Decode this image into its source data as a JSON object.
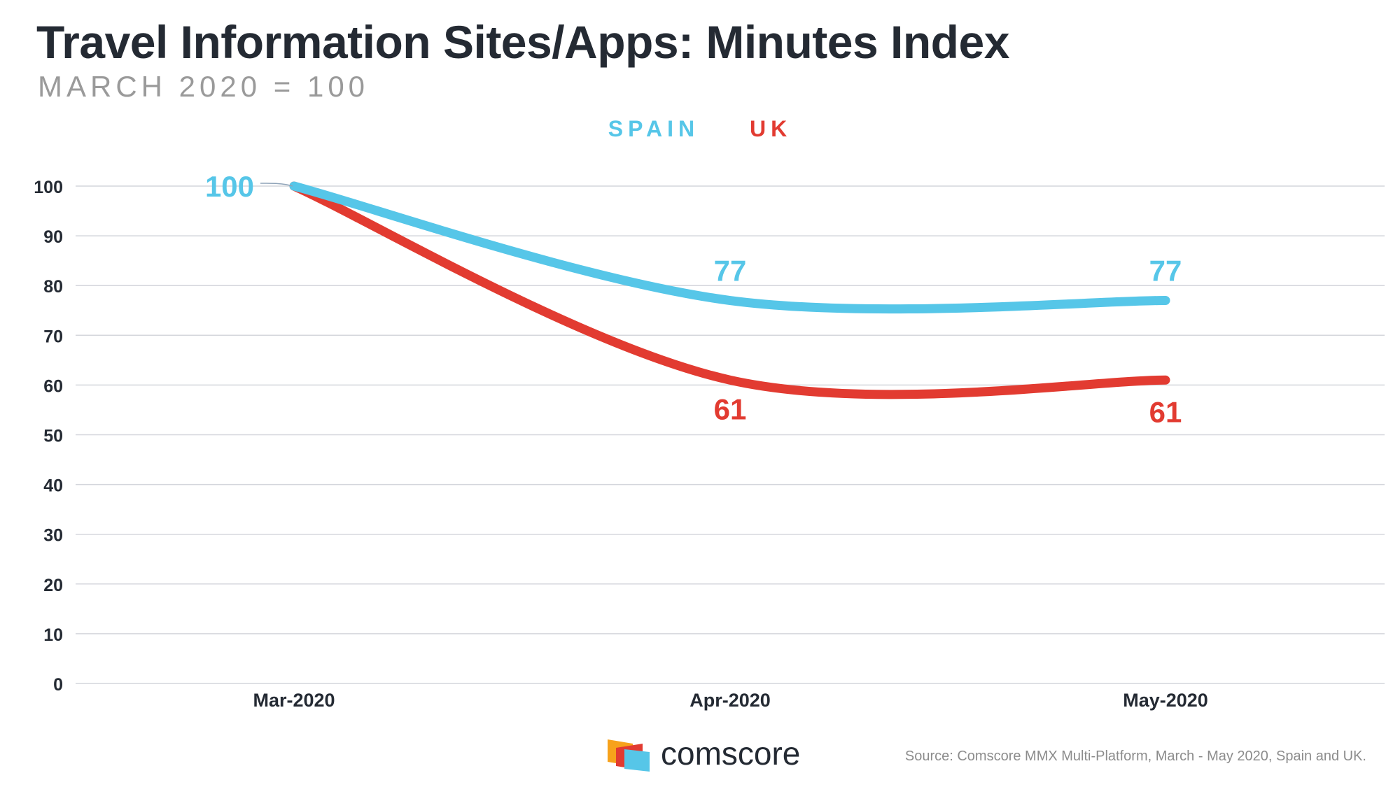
{
  "title": "Travel Information Sites/Apps: Minutes Index",
  "subtitle": "MARCH 2020 = 100",
  "source": "Source: Comscore MMX Multi-Platform, March - May 2020, Spain and UK.",
  "logo": {
    "text": "comscore",
    "icon": "comscore-logo-icon"
  },
  "colors": {
    "spain": "#56c6e8",
    "uk": "#e23b31",
    "grid": "#d4d6dc",
    "axis_text": "#242a33"
  },
  "chart_data": {
    "type": "line",
    "title": "Travel Information Sites/Apps: Minutes Index",
    "subtitle": "MARCH 2020 = 100",
    "categories": [
      "Mar-2020",
      "Apr-2020",
      "May-2020"
    ],
    "series": [
      {
        "name": "SPAIN",
        "values": [
          100,
          77,
          77
        ],
        "labels": [
          "100",
          "77",
          "77"
        ]
      },
      {
        "name": "UK",
        "values": [
          100,
          61,
          61
        ],
        "labels": [
          "",
          "61",
          "61"
        ]
      }
    ],
    "ylim": [
      0,
      100
    ],
    "yticks": [
      "0",
      "10",
      "20",
      "30",
      "40",
      "50",
      "60",
      "70",
      "80",
      "90",
      "100"
    ],
    "grid": true,
    "legend": "top-center"
  }
}
